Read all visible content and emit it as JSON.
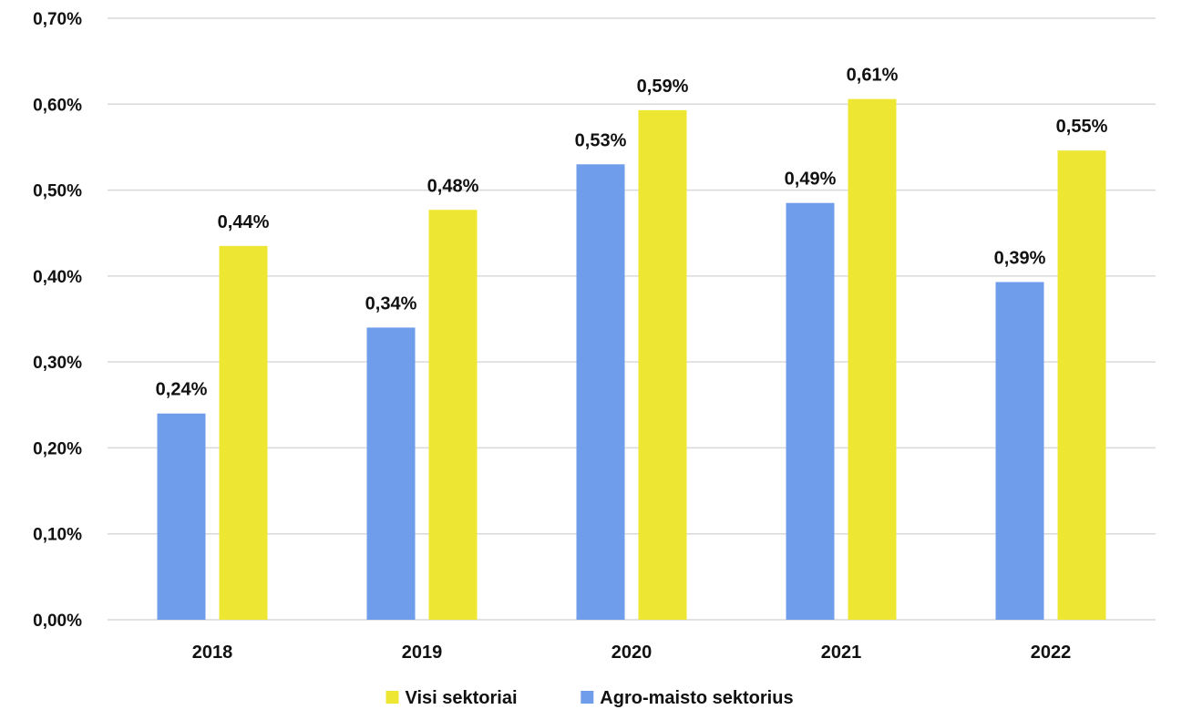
{
  "chart_data": {
    "type": "bar",
    "title": "",
    "xlabel": "",
    "ylabel": "",
    "categories": [
      "2018",
      "2019",
      "2020",
      "2021",
      "2022"
    ],
    "series": [
      {
        "name": "Agro-maisto sektorius",
        "color": "#6f9ceb",
        "values": [
          0.24,
          0.34,
          0.53,
          0.485,
          0.393
        ],
        "labels": [
          "0,24%",
          "0,34%",
          "0,53%",
          "0,49%",
          "0,39%"
        ]
      },
      {
        "name": "Visi sektoriai",
        "color": "#ede632",
        "values": [
          0.435,
          0.477,
          0.593,
          0.606,
          0.546
        ],
        "labels": [
          "0,44%",
          "0,48%",
          "0,59%",
          "0,61%",
          "0,55%"
        ]
      }
    ],
    "ylim": [
      0,
      0.7
    ],
    "yticks": [
      0,
      0.1,
      0.2,
      0.3,
      0.4,
      0.5,
      0.6,
      0.7
    ],
    "ytick_labels": [
      "0,00%",
      "0,10%",
      "0,20%",
      "0,30%",
      "0,40%",
      "0,50%",
      "0,60%",
      "0,70%"
    ],
    "grid": true,
    "legend": {
      "position": "bottom",
      "order": [
        "Visi sektoriai",
        "Agro-maisto sektorius"
      ]
    }
  }
}
